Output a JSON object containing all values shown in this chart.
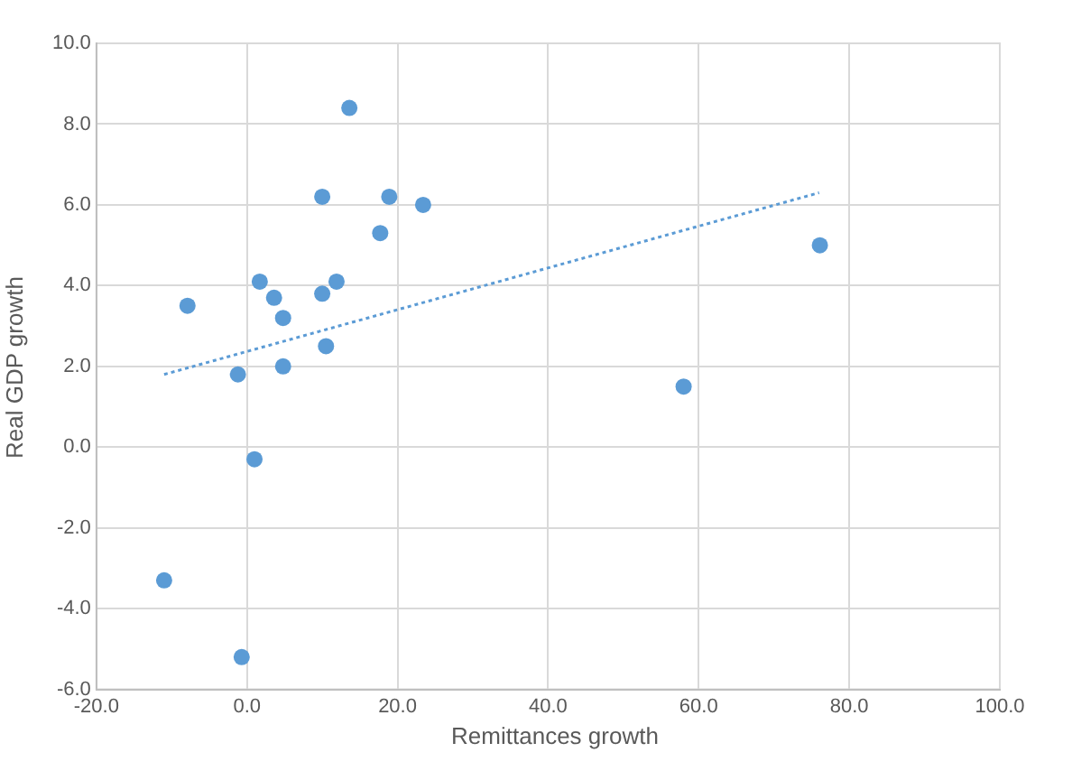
{
  "chart_data": {
    "type": "scatter",
    "xlabel": "Remittances growth",
    "ylabel": "Real GDP growth",
    "xlim": [
      -20,
      100
    ],
    "xticks": [
      {
        "value": -20,
        "label": "-20.0"
      },
      {
        "value": 0,
        "label": "0.0"
      },
      {
        "value": 20,
        "label": "20.0"
      },
      {
        "value": 40,
        "label": "40.0"
      },
      {
        "value": 60,
        "label": "60.0"
      },
      {
        "value": 80,
        "label": "80.0"
      },
      {
        "value": 100,
        "label": "100.0"
      }
    ],
    "ylim": [
      -6,
      10
    ],
    "yticks": [
      {
        "value": -6,
        "label": "-6.0"
      },
      {
        "value": -4,
        "label": "-4.0"
      },
      {
        "value": -2,
        "label": "-2.0"
      },
      {
        "value": 0,
        "label": "0.0"
      },
      {
        "value": 2,
        "label": "2.0"
      },
      {
        "value": 4,
        "label": "4.0"
      },
      {
        "value": 6,
        "label": "6.0"
      },
      {
        "value": 8,
        "label": "8.0"
      },
      {
        "value": 10,
        "label": "10.0"
      }
    ],
    "grid": true,
    "marker": "circle",
    "series": [
      {
        "color": "#5b9bd5",
        "x": [
          -11,
          -7.9,
          -1.2,
          -0.7,
          1.0,
          1.7,
          3.6,
          4.8,
          4.8,
          10.0,
          10.0,
          10.5,
          11.9,
          13.6,
          17.7,
          18.9,
          23.4,
          58,
          76.1
        ],
        "values": [
          -3.3,
          3.5,
          1.8,
          -5.2,
          -0.3,
          4.1,
          3.7,
          3.2,
          2.0,
          6.2,
          3.8,
          2.5,
          4.1,
          8.4,
          5.3,
          6.2,
          6.0,
          1.5,
          5.0
        ]
      },
      {
        "type": "line",
        "color": "#5b9bd5",
        "line_style": "dotted",
        "marker": "none",
        "x": [
          -11,
          76
        ],
        "values": [
          1.8,
          6.3
        ]
      }
    ]
  }
}
